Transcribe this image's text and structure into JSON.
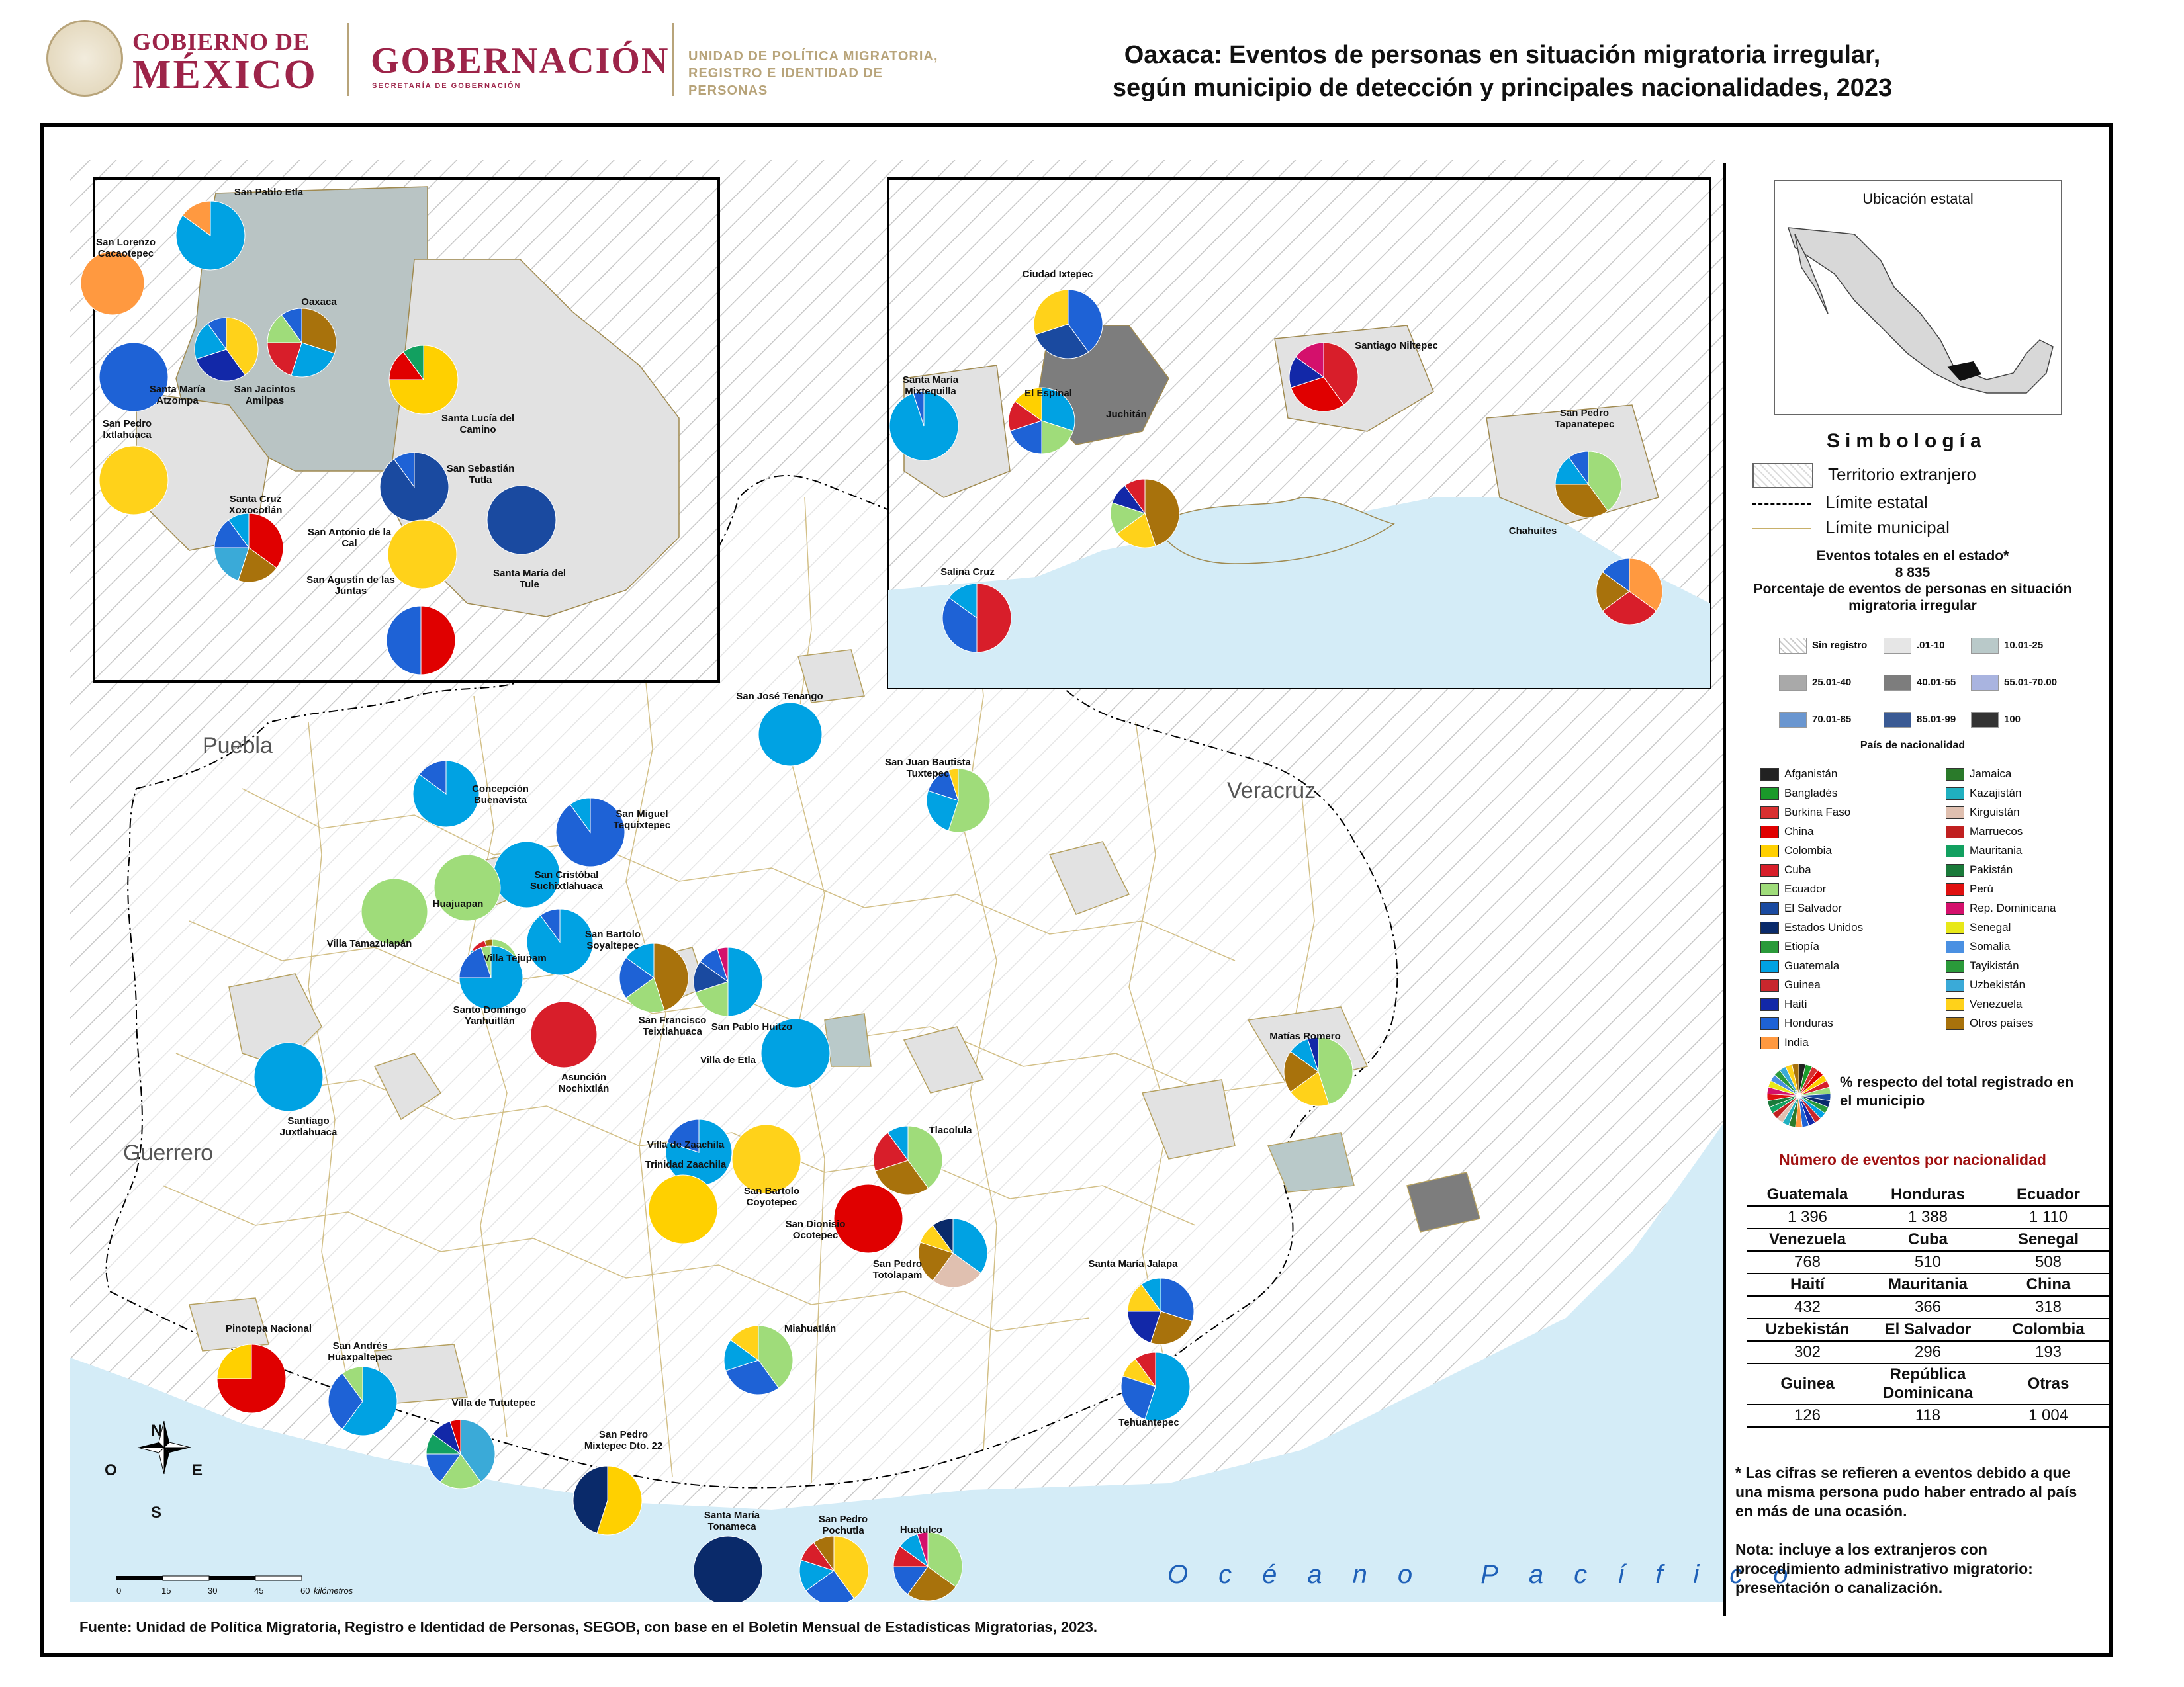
{
  "header": {
    "gobierno_line1": "GOBIERNO DE",
    "gobierno_line2": "MÉXICO",
    "gobernacion": "GOBERNACIÓN",
    "secretaria": "SECRETARÍA DE GOBERNACIÓN",
    "unidad_line1": "UNIDAD DE POLÍTICA MIGRATORIA,",
    "unidad_line2": "REGISTRO E IDENTIDAD DE PERSONAS",
    "title_line1": "Oaxaca: Eventos de personas en situación migratoria irregular,",
    "title_line2": "según municipio de detección y principales nacionalidades, 2023"
  },
  "colors": {
    "gob_red": "#9d2449",
    "gold": "#b8a47a",
    "sea": "#d4ecf7",
    "foreign_hatch": "#cfcfcf",
    "class_01_10": "#e6e6e6",
    "class_10_25": "#b9c9c9",
    "class_25_40": "#a9a9a9"
  },
  "nationality_colors": {
    "Guatemala": "#00a2e3",
    "Honduras": "#1e62d6",
    "Ecuador": "#9fdc7a",
    "Venezuela": "#ffd21a",
    "Cuba": "#d81e2a",
    "Senegal": "#e8e818",
    "Haití": "#1228a8",
    "Mauritania": "#12a060",
    "China": "#e00000",
    "Uzbekistán": "#3aaad8",
    "El Salvador": "#1a4aa0",
    "Colombia": "#ffd000",
    "Guinea": "#c8272d",
    "República Dominicana": "#d4106c",
    "Estados Unidos": "#0a2a6a",
    "India": "#ff9940",
    "Otras": "#a8720c",
    "Kirguistán": "#e0c0b0",
    "Perú": "#e01010"
  },
  "map": {
    "states": [
      "Puebla",
      "Veracruz",
      "Guerrero"
    ],
    "ocean": "Océano Pacífico",
    "scale_ticks": [
      "0",
      "15",
      "30",
      "45",
      "60"
    ],
    "scale_unit": "kilómetros",
    "compass": {
      "n": "N",
      "s": "S",
      "e": "E",
      "w": "O"
    },
    "municipios": [
      {
        "name": "San José Tenango",
        "mix": {
          "Guatemala": 1.0
        }
      },
      {
        "name": "San Juan Bautista Tuxtepec",
        "mix": {
          "Ecuador": 0.55,
          "Guatemala": 0.25,
          "Honduras": 0.15,
          "Venezuela": 0.05
        }
      },
      {
        "name": "Concepción Buenavista",
        "mix": {
          "Guatemala": 0.85,
          "Honduras": 0.15
        }
      },
      {
        "name": "San Miguel Tequixtepec",
        "mix": {
          "Honduras": 0.9,
          "Guatemala": 0.1
        }
      },
      {
        "name": "San Cristóbal Suchixtlahuaca",
        "mix": {
          "Guatemala": 1.0
        }
      },
      {
        "name": "Huajuapan",
        "mix": {
          "Ecuador": 1.0
        }
      },
      {
        "name": "Villa Tamazulapán",
        "mix": {
          "Ecuador": 1.0
        }
      },
      {
        "name": "Villa Tejupam",
        "mix": {
          "Ecuador": 0.6,
          "Guatemala": 0.25,
          "Cuba": 0.1,
          "Otras": 0.05
        }
      },
      {
        "name": "San Bartolo Soyaltepec",
        "mix": {
          "Guatemala": 0.9,
          "Honduras": 0.1
        }
      },
      {
        "name": "Santo Domingo Yanhuitlán",
        "mix": {
          "Guatemala": 0.75,
          "Honduras": 0.2,
          "Ecuador": 0.05
        }
      },
      {
        "name": "San Francisco Teixtlahuaca",
        "mix": {
          "Otras": 0.45,
          "Ecuador": 0.2,
          "Honduras": 0.2,
          "Guatemala": 0.15
        }
      },
      {
        "name": "San Pablo Huitzo",
        "mix": {
          "Guatemala": 0.5,
          "Ecuador": 0.2,
          "El Salvador": 0.15,
          "Honduras": 0.1,
          "República Dominicana": 0.05
        }
      },
      {
        "name": "Asunción Nochixtlán",
        "mix": {
          "Cuba": 1.0
        }
      },
      {
        "name": "Santiago Juxtlahuaca",
        "mix": {
          "Guatemala": 1.0
        }
      },
      {
        "name": "Villa de Etla",
        "mix": {
          "Guatemala": 1.0
        }
      },
      {
        "name": "Villa de Zaachila",
        "mix": {
          "Guatemala": 0.8,
          "Honduras": 0.2
        }
      },
      {
        "name": "Trinidad Zaachila",
        "mix": {
          "Colombia": 1.0
        }
      },
      {
        "name": "San Bartolo Coyotepec",
        "mix": {
          "Venezuela": 1.0
        }
      },
      {
        "name": "Tlacolula",
        "mix": {
          "Ecuador": 0.4,
          "Otras": 0.3,
          "Cuba": 0.2,
          "Guatemala": 0.1
        }
      },
      {
        "name": "San Dionisio Ocotepec",
        "mix": {
          "China": 1.0
        }
      },
      {
        "name": "San Pedro Totolapam",
        "mix": {
          "Guatemala": 0.35,
          "Kirguistán": 0.25,
          "Otras": 0.2,
          "Venezuela": 0.1,
          "Estados Unidos": 0.1
        }
      },
      {
        "name": "Matías Romero",
        "mix": {
          "Ecuador": 0.45,
          "Venezuela": 0.2,
          "Otras": 0.2,
          "Guatemala": 0.1,
          "Haití": 0.05
        }
      },
      {
        "name": "Santa María Jalapa",
        "mix": {
          "Honduras": 0.3,
          "Otras": 0.25,
          "Haití": 0.2,
          "Venezuela": 0.15,
          "Guatemala": 0.1
        }
      },
      {
        "name": "Tehuantepec",
        "mix": {
          "Guatemala": 0.55,
          "Honduras": 0.25,
          "Venezuela": 0.1,
          "Cuba": 0.1
        }
      },
      {
        "name": "Miahuatlán",
        "mix": {
          "Ecuador": 0.4,
          "Honduras": 0.3,
          "Guatemala": 0.15,
          "Venezuela": 0.15
        }
      },
      {
        "name": "Pinotepa Nacional",
        "mix": {
          "China": 0.75,
          "Colombia": 0.25
        }
      },
      {
        "name": "San Andrés Huaxpaltepec",
        "mix": {
          "Guatemala": 0.6,
          "Honduras": 0.3,
          "Ecuador": 0.1
        }
      },
      {
        "name": "Villa de Tututepec",
        "mix": {
          "Uzbekistán": 0.4,
          "Ecuador": 0.2,
          "Honduras": 0.15,
          "Mauritania": 0.1,
          "Haití": 0.1,
          "China": 0.05
        }
      },
      {
        "name": "San Pedro Mixtepec Dto. 22",
        "mix": {
          "Colombia": 0.55,
          "Estados Unidos": 0.45
        }
      },
      {
        "name": "Santa María Tonameca",
        "mix": {
          "Estados Unidos": 1.0
        }
      },
      {
        "name": "San Pedro Pochutla",
        "mix": {
          "Venezuela": 0.4,
          "Honduras": 0.25,
          "Guatemala": 0.15,
          "Cuba": 0.1,
          "Otras": 0.1
        }
      },
      {
        "name": "Huatulco",
        "mix": {
          "Ecuador": 0.35,
          "Otras": 0.25,
          "Honduras": 0.15,
          "Cuba": 0.1,
          "Guatemala": 0.1,
          "República Dominicana": 0.05
        }
      }
    ],
    "inset_oaxaca": [
      {
        "name": "San Pablo Etla",
        "mix": {
          "Guatemala": 0.85,
          "India": 0.15
        }
      },
      {
        "name": "San Lorenzo Cacaotepec",
        "mix": {
          "India": 1.0
        }
      },
      {
        "name": "Oaxaca",
        "mix": {
          "Otras": 0.3,
          "Guatemala": 0.25,
          "Cuba": 0.2,
          "Ecuador": 0.15,
          "Honduras": 0.1
        }
      },
      {
        "name": "Santa María Atzompa",
        "mix": {
          "Honduras": 1.0
        }
      },
      {
        "name": "San Jacintos Amilpas",
        "mix": {
          "Venezuela": 0.4,
          "Haití": 0.3,
          "Guatemala": 0.2,
          "Honduras": 0.1
        }
      },
      {
        "name": "San Pedro Ixtlahuaca",
        "mix": {
          "Venezuela": 1.0
        }
      },
      {
        "name": "Santa Lucía del Camino",
        "mix": {
          "Colombia": 0.75,
          "China": 0.15,
          "Mauritania": 0.1
        }
      },
      {
        "name": "San Sebastián Tutla",
        "mix": {
          "El Salvador": 0.9,
          "Honduras": 0.1
        }
      },
      {
        "name": "Santa Cruz Xoxocotlán",
        "mix": {
          "China": 0.35,
          "Otras": 0.2,
          "Uzbekistán": 0.2,
          "Honduras": 0.15,
          "Guatemala": 0.1
        }
      },
      {
        "name": "San Antonio de la Cal",
        "mix": {
          "Venezuela": 1.0
        }
      },
      {
        "name": "Santa María del Tule",
        "mix": {
          "El Salvador": 1.0
        }
      },
      {
        "name": "San Agustín de las Juntas",
        "mix": {
          "China": 0.5,
          "Honduras": 0.5
        }
      }
    ],
    "inset_istmo": [
      {
        "name": "Ciudad Ixtepec",
        "mix": {
          "Honduras": 0.4,
          "El Salvador": 0.3,
          "Venezuela": 0.3
        }
      },
      {
        "name": "Santa María Mixtequilla",
        "mix": {
          "Guatemala": 0.95,
          "Honduras": 0.05
        }
      },
      {
        "name": "El Espinal",
        "mix": {
          "Guatemala": 0.3,
          "Ecuador": 0.2,
          "Honduras": 0.2,
          "Cuba": 0.15,
          "Colombia": 0.15
        }
      },
      {
        "name": "Juchitán",
        "mix": {
          "Otras": 0.45,
          "Venezuela": 0.2,
          "Ecuador": 0.15,
          "Haití": 0.1,
          "Cuba": 0.1
        }
      },
      {
        "name": "Santiago Niltepec",
        "mix": {
          "Cuba": 0.4,
          "China": 0.3,
          "Haití": 0.15,
          "República Dominicana": 0.15
        }
      },
      {
        "name": "San Pedro Tapanatepec",
        "mix": {
          "Ecuador": 0.4,
          "Otras": 0.35,
          "Guatemala": 0.15,
          "Honduras": 0.1
        }
      },
      {
        "name": "Chahuites",
        "mix": {
          "India": 0.35,
          "Cuba": 0.3,
          "Otras": 0.2,
          "Honduras": 0.15
        }
      },
      {
        "name": "Salina Cruz",
        "mix": {
          "Cuba": 0.5,
          "Honduras": 0.35,
          "Guatemala": 0.15
        }
      }
    ]
  },
  "legend": {
    "ubicacion_title": "Ubicación estatal",
    "simbologia": "Simbología",
    "territorio": "Territorio extranjero",
    "limite_estatal": "Límite estatal",
    "limite_municipal": "Límite municipal",
    "eventos_label": "Eventos totales en el estado*",
    "eventos_total": "8 835",
    "porcentaje_label": "Porcentaje de eventos de personas en situación migratoria irregular",
    "classes": [
      {
        "label": "Sin registro",
        "color": "#ffffff"
      },
      {
        "label": ".01-10",
        "color": "#e6e6e6"
      },
      {
        "label": "10.01-25",
        "color": "#b9c9c9"
      },
      {
        "label": "25.01-40",
        "color": "#a9a9a9"
      },
      {
        "label": "40.01-55",
        "color": "#7d7d7d"
      },
      {
        "label": "55.01-70.00",
        "color": "#a9b4e0"
      },
      {
        "label": "70.01-85",
        "color": "#6a96d0"
      },
      {
        "label": "85.01-99",
        "color": "#3a5a94"
      },
      {
        "label": "100",
        "color": "#333333"
      }
    ],
    "pais_title": "País de nacionalidad",
    "countries_left": [
      {
        "label": "Afganistán",
        "color": "#222222"
      },
      {
        "label": "Bangladés",
        "color": "#1a9a2a"
      },
      {
        "label": "Burkina Faso",
        "color": "#d83030"
      },
      {
        "label": "China",
        "color": "#e00000"
      },
      {
        "label": "Colombia",
        "color": "#ffd000"
      },
      {
        "label": "Cuba",
        "color": "#d81e2a"
      },
      {
        "label": "Ecuador",
        "color": "#9fdc7a"
      },
      {
        "label": "El Salvador",
        "color": "#1a4aa0"
      },
      {
        "label": "Estados Unidos",
        "color": "#0a2a6a"
      },
      {
        "label": "Etiopía",
        "color": "#2a9a3a"
      },
      {
        "label": "Guatemala",
        "color": "#00a2e3"
      },
      {
        "label": "Guinea",
        "color": "#c8272d"
      },
      {
        "label": "Haití",
        "color": "#1228a8"
      },
      {
        "label": "Honduras",
        "color": "#1e62d6"
      },
      {
        "label": "India",
        "color": "#ff9940"
      }
    ],
    "countries_right": [
      {
        "label": "Jamaica",
        "color": "#2a7a2a"
      },
      {
        "label": "Kazajistán",
        "color": "#20b0c0"
      },
      {
        "label": "Kirguistán",
        "color": "#e0c0b0"
      },
      {
        "label": "Marruecos",
        "color": "#c02020"
      },
      {
        "label": "Mauritania",
        "color": "#12a060"
      },
      {
        "label": "Pakistán",
        "color": "#1a7a3a"
      },
      {
        "label": "Perú",
        "color": "#e01010"
      },
      {
        "label": "Rep. Dominicana",
        "color": "#d4106c"
      },
      {
        "label": "Senegal",
        "color": "#e8e818"
      },
      {
        "label": "Somalia",
        "color": "#4a90e2"
      },
      {
        "label": "Tayikistán",
        "color": "#2a9a3a"
      },
      {
        "label": "Uzbekistán",
        "color": "#3aaad8"
      },
      {
        "label": "Venezuela",
        "color": "#ffd21a"
      },
      {
        "label": "Otros países",
        "color": "#a8720c"
      }
    ],
    "pie_legend": "% respecto del total registrado en el municipio",
    "numero_title": "Número de eventos por nacionalidad",
    "table": [
      [
        {
          "h": "Guatemala",
          "v": "1 396"
        },
        {
          "h": "Honduras",
          "v": "1 388"
        },
        {
          "h": "Ecuador",
          "v": "1 110"
        }
      ],
      [
        {
          "h": "Venezuela",
          "v": "768"
        },
        {
          "h": "Cuba",
          "v": "510"
        },
        {
          "h": "Senegal",
          "v": "508"
        }
      ],
      [
        {
          "h": "Haití",
          "v": "432"
        },
        {
          "h": "Mauritania",
          "v": "366"
        },
        {
          "h": "China",
          "v": "318"
        }
      ],
      [
        {
          "h": "Uzbekistán",
          "v": "302"
        },
        {
          "h": "El Salvador",
          "v": "296"
        },
        {
          "h": "Colombia",
          "v": "193"
        }
      ],
      [
        {
          "h": "Guinea",
          "v": "126"
        },
        {
          "h": "República Dominicana",
          "v": "118"
        },
        {
          "h": "Otras",
          "v": "1 004"
        }
      ]
    ],
    "note1": "* Las cifras se refieren a eventos debido a que una misma persona pudo haber entrado al país en más de una ocasión.",
    "note2": "Nota: incluye a los extranjeros con procedimiento administrativo migratorio: presentación o canalización."
  },
  "footer": {
    "source": "Fuente: Unidad de Política Migratoria, Registro e Identidad de Personas, SEGOB, con base en el Boletín Mensual de Estadísticas Migratorias, 2023."
  }
}
